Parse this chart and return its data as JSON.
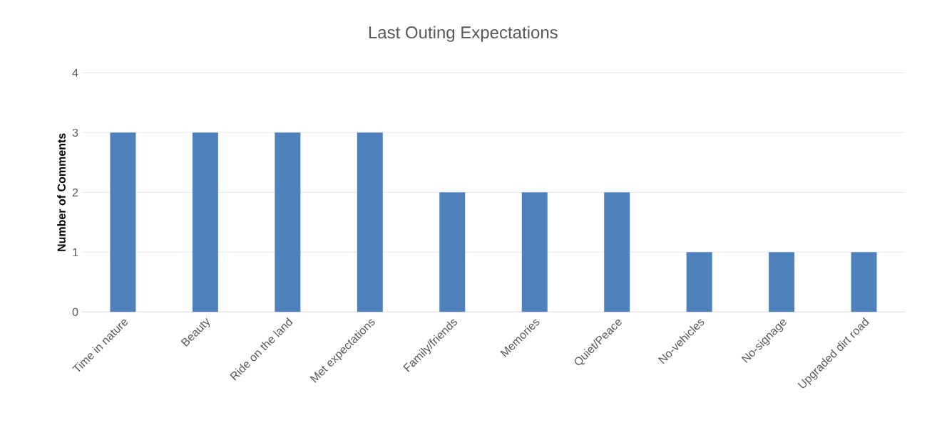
{
  "chart_data": {
    "type": "bar",
    "title": "Last Outing Expectations",
    "ylabel": "Number of Comments",
    "categories": [
      "Time in nature",
      "Beauty",
      "Ride on the land",
      "Met expectations",
      "Family/friends",
      "Memories",
      "Quiet/Peace",
      "No-vehicles",
      "No-signage",
      "Upgraded dirt road"
    ],
    "values": [
      3,
      3,
      3,
      3,
      2,
      2,
      2,
      1,
      1,
      1
    ],
    "color": "#4f81bd",
    "ylim": [
      0,
      4
    ],
    "yticks": [
      0,
      1,
      2,
      3,
      4
    ],
    "grid": "y"
  }
}
